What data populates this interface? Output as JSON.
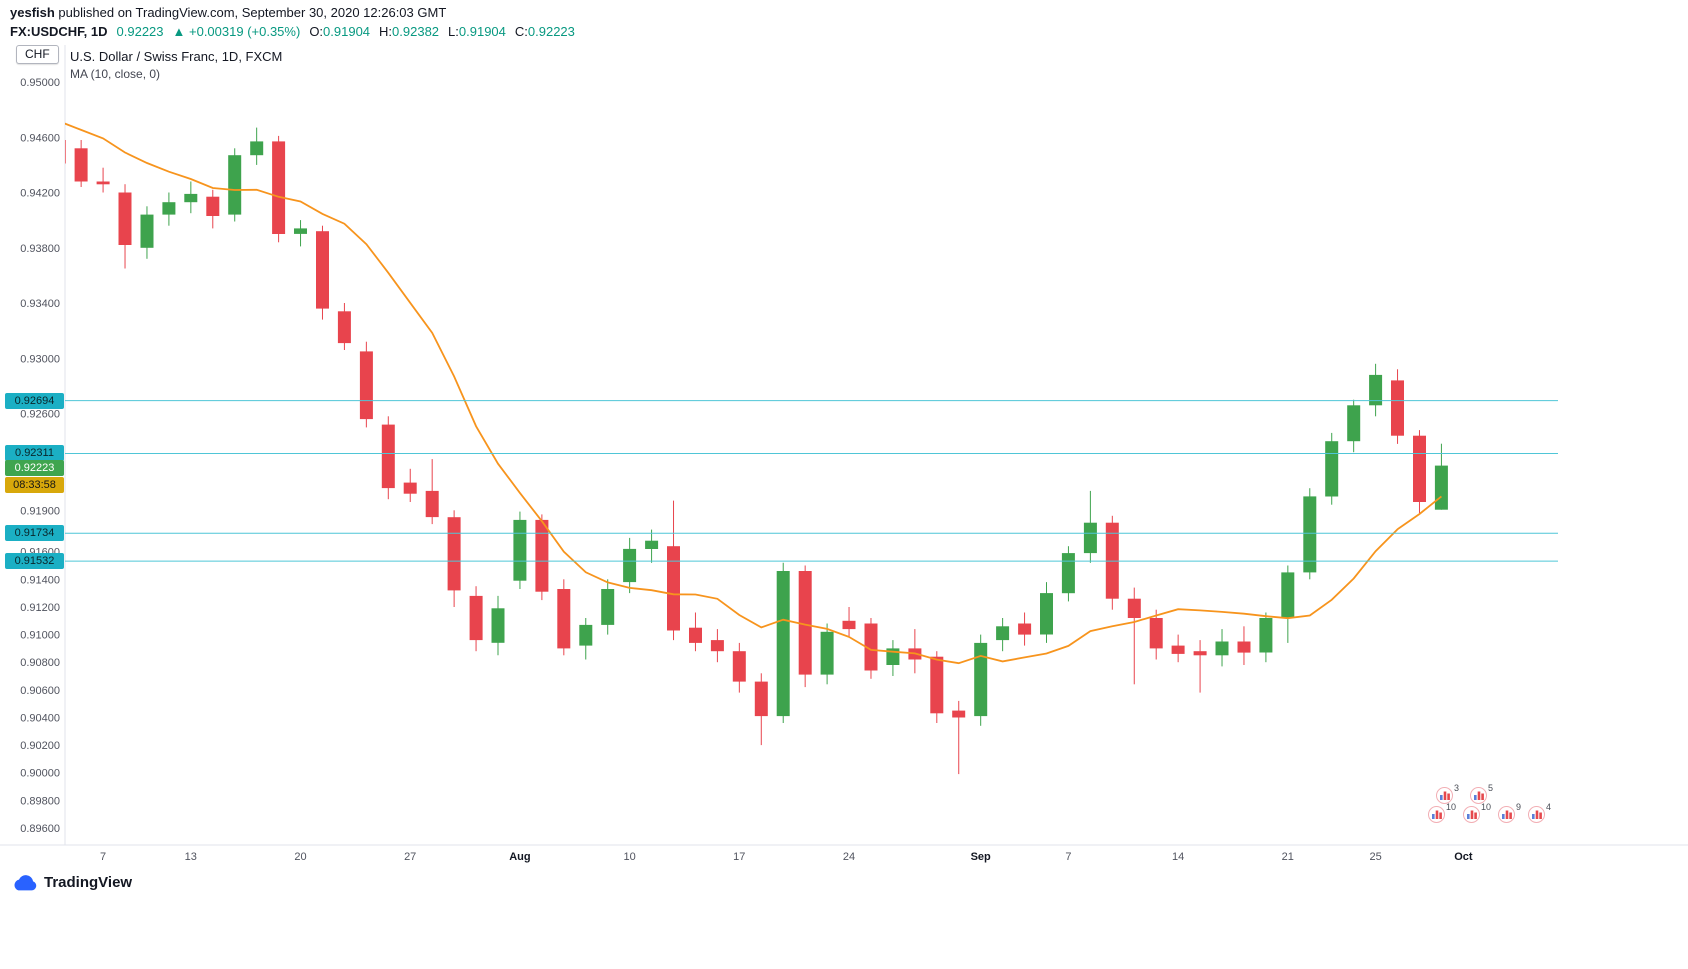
{
  "header": {
    "author": "yesfish",
    "published_suffix": " published on TradingView.com, September 30, 2020 12:26:03 GMT",
    "symbol": "FX:USDCHF, 1D",
    "last_price": "0.92223",
    "change": "▲ +0.00319 (+0.35%)",
    "ohlc": {
      "o_label": "O:",
      "o": "0.91904",
      "h_label": "H:",
      "h": "0.92382",
      "l_label": "L:",
      "l": "0.91904",
      "c_label": "C:",
      "c": "0.92223"
    }
  },
  "chart": {
    "compare_button": "CHF",
    "title": "U.S. Dollar / Swiss Franc, 1D, FXCM",
    "indicator": "MA (10, close, 0)"
  },
  "chart_data": {
    "type": "candlestick",
    "title": "U.S. Dollar / Swiss Franc, 1D, FXCM",
    "symbol": "USDCHF",
    "timeframe": "1D",
    "exchange": "FXCM",
    "indicator": "MA (10, close, 0)",
    "ylim": [
      0.8948,
      0.9527
    ],
    "y_axis_ticks": [
      "0.95000",
      "0.94600",
      "0.94200",
      "0.93800",
      "0.93400",
      "0.93000",
      "0.92600",
      "0.91900",
      "0.91600",
      "0.91400",
      "0.91200",
      "0.91000",
      "0.90800",
      "0.90600",
      "0.90400",
      "0.90200",
      "0.90000",
      "0.89800",
      "0.89600"
    ],
    "x_axis_labels": [
      {
        "label": "7",
        "ci": 2,
        "month": false
      },
      {
        "label": "13",
        "ci": 6,
        "month": false
      },
      {
        "label": "20",
        "ci": 11,
        "month": false
      },
      {
        "label": "27",
        "ci": 16,
        "month": false
      },
      {
        "label": "Aug",
        "ci": 21,
        "month": true
      },
      {
        "label": "10",
        "ci": 26,
        "month": false
      },
      {
        "label": "17",
        "ci": 31,
        "month": false
      },
      {
        "label": "24",
        "ci": 36,
        "month": false
      },
      {
        "label": "Sep",
        "ci": 42,
        "month": true
      },
      {
        "label": "7",
        "ci": 46,
        "month": false
      },
      {
        "label": "14",
        "ci": 51,
        "month": false
      },
      {
        "label": "21",
        "ci": 56,
        "month": false
      },
      {
        "label": "25",
        "ci": 60,
        "month": false
      },
      {
        "label": "Oct",
        "ci": 64,
        "month": true
      }
    ],
    "price_lines": [
      "0.92694",
      "0.92311",
      "0.91734",
      "0.91532"
    ],
    "last_price": "0.92223",
    "countdown": "08:33:58",
    "ma": {
      "period": 10,
      "source": "close",
      "offset": 0
    },
    "ma_prefix_closes": [
      0.9492,
      0.949,
      0.9487,
      0.9484,
      0.948,
      0.9476,
      0.9472,
      0.9468,
      0.9462,
      0.9455
    ],
    "candles": [
      {
        "d": "Jul 3",
        "o": 0.9458,
        "h": 0.9462,
        "l": 0.9436,
        "c": 0.9441
      },
      {
        "d": "Jul 6",
        "o": 0.9452,
        "h": 0.9458,
        "l": 0.9424,
        "c": 0.9428
      },
      {
        "d": "Jul 7",
        "o": 0.9428,
        "h": 0.9438,
        "l": 0.942,
        "c": 0.9426
      },
      {
        "d": "Jul 8",
        "o": 0.942,
        "h": 0.9426,
        "l": 0.9365,
        "c": 0.9382
      },
      {
        "d": "Jul 9",
        "o": 0.938,
        "h": 0.941,
        "l": 0.9372,
        "c": 0.9404
      },
      {
        "d": "Jul 10",
        "o": 0.9404,
        "h": 0.942,
        "l": 0.9396,
        "c": 0.9413
      },
      {
        "d": "Jul 13",
        "o": 0.9413,
        "h": 0.9428,
        "l": 0.9405,
        "c": 0.9419
      },
      {
        "d": "Jul 14",
        "o": 0.9417,
        "h": 0.9422,
        "l": 0.9394,
        "c": 0.9403
      },
      {
        "d": "Jul 15",
        "o": 0.9404,
        "h": 0.9452,
        "l": 0.9399,
        "c": 0.9447
      },
      {
        "d": "Jul 16",
        "o": 0.9447,
        "h": 0.9467,
        "l": 0.944,
        "c": 0.9457
      },
      {
        "d": "Jul 17",
        "o": 0.9457,
        "h": 0.9461,
        "l": 0.9384,
        "c": 0.939
      },
      {
        "d": "Jul 20",
        "o": 0.939,
        "h": 0.94,
        "l": 0.9381,
        "c": 0.9394
      },
      {
        "d": "Jul 21",
        "o": 0.9392,
        "h": 0.9396,
        "l": 0.9328,
        "c": 0.9336
      },
      {
        "d": "Jul 22",
        "o": 0.9334,
        "h": 0.934,
        "l": 0.9306,
        "c": 0.9311
      },
      {
        "d": "Jul 23",
        "o": 0.9305,
        "h": 0.9312,
        "l": 0.925,
        "c": 0.9256
      },
      {
        "d": "Jul 24",
        "o": 0.9252,
        "h": 0.9258,
        "l": 0.9198,
        "c": 0.9206
      },
      {
        "d": "Jul 27",
        "o": 0.921,
        "h": 0.922,
        "l": 0.9196,
        "c": 0.9202
      },
      {
        "d": "Jul 28",
        "o": 0.9204,
        "h": 0.9227,
        "l": 0.918,
        "c": 0.9185
      },
      {
        "d": "Jul 29",
        "o": 0.9185,
        "h": 0.919,
        "l": 0.912,
        "c": 0.9132
      },
      {
        "d": "Jul 30",
        "o": 0.9128,
        "h": 0.9135,
        "l": 0.9088,
        "c": 0.9096
      },
      {
        "d": "Jul 31",
        "o": 0.9094,
        "h": 0.9128,
        "l": 0.9085,
        "c": 0.9119
      },
      {
        "d": "Aug 3",
        "o": 0.9139,
        "h": 0.9189,
        "l": 0.9133,
        "c": 0.9183
      },
      {
        "d": "Aug 4",
        "o": 0.9183,
        "h": 0.9187,
        "l": 0.9125,
        "c": 0.9131
      },
      {
        "d": "Aug 5",
        "o": 0.9133,
        "h": 0.914,
        "l": 0.9085,
        "c": 0.909
      },
      {
        "d": "Aug 6",
        "o": 0.9092,
        "h": 0.9112,
        "l": 0.9082,
        "c": 0.9107
      },
      {
        "d": "Aug 7",
        "o": 0.9107,
        "h": 0.914,
        "l": 0.91,
        "c": 0.9133
      },
      {
        "d": "Aug 10",
        "o": 0.9138,
        "h": 0.917,
        "l": 0.913,
        "c": 0.9162
      },
      {
        "d": "Aug 11",
        "o": 0.9162,
        "h": 0.9176,
        "l": 0.9152,
        "c": 0.9168
      },
      {
        "d": "Aug 12",
        "o": 0.9164,
        "h": 0.9197,
        "l": 0.9096,
        "c": 0.9103
      },
      {
        "d": "Aug 13",
        "o": 0.9105,
        "h": 0.9116,
        "l": 0.9088,
        "c": 0.9094
      },
      {
        "d": "Aug 14",
        "o": 0.9096,
        "h": 0.9104,
        "l": 0.908,
        "c": 0.9088
      },
      {
        "d": "Aug 17",
        "o": 0.9088,
        "h": 0.9094,
        "l": 0.9058,
        "c": 0.9066
      },
      {
        "d": "Aug 18",
        "o": 0.9066,
        "h": 0.9072,
        "l": 0.902,
        "c": 0.9041
      },
      {
        "d": "Aug 19",
        "o": 0.9041,
        "h": 0.9152,
        "l": 0.9036,
        "c": 0.9146
      },
      {
        "d": "Aug 20",
        "o": 0.9146,
        "h": 0.915,
        "l": 0.9062,
        "c": 0.9071
      },
      {
        "d": "Aug 21",
        "o": 0.9071,
        "h": 0.9108,
        "l": 0.9064,
        "c": 0.9102
      },
      {
        "d": "Aug 24",
        "o": 0.911,
        "h": 0.912,
        "l": 0.9098,
        "c": 0.9104
      },
      {
        "d": "Aug 25",
        "o": 0.9108,
        "h": 0.9112,
        "l": 0.9068,
        "c": 0.9074
      },
      {
        "d": "Aug 26",
        "o": 0.9078,
        "h": 0.9096,
        "l": 0.907,
        "c": 0.909
      },
      {
        "d": "Aug 27",
        "o": 0.909,
        "h": 0.9104,
        "l": 0.9072,
        "c": 0.9082
      },
      {
        "d": "Aug 28",
        "o": 0.9084,
        "h": 0.9088,
        "l": 0.9036,
        "c": 0.9043
      },
      {
        "d": "Aug 31",
        "o": 0.9045,
        "h": 0.9052,
        "l": 0.8999,
        "c": 0.904
      },
      {
        "d": "Sep 1",
        "o": 0.9041,
        "h": 0.91,
        "l": 0.9034,
        "c": 0.9094
      },
      {
        "d": "Sep 2",
        "o": 0.9096,
        "h": 0.9112,
        "l": 0.9088,
        "c": 0.9106
      },
      {
        "d": "Sep 3",
        "o": 0.9108,
        "h": 0.9116,
        "l": 0.9092,
        "c": 0.91
      },
      {
        "d": "Sep 4",
        "o": 0.91,
        "h": 0.9138,
        "l": 0.9094,
        "c": 0.913
      },
      {
        "d": "Sep 7",
        "o": 0.913,
        "h": 0.9164,
        "l": 0.9124,
        "c": 0.9159
      },
      {
        "d": "Sep 8",
        "o": 0.9159,
        "h": 0.9204,
        "l": 0.9152,
        "c": 0.9181
      },
      {
        "d": "Sep 9",
        "o": 0.9181,
        "h": 0.9186,
        "l": 0.9118,
        "c": 0.9126
      },
      {
        "d": "Sep 10",
        "o": 0.9126,
        "h": 0.9134,
        "l": 0.9064,
        "c": 0.9112
      },
      {
        "d": "Sep 11",
        "o": 0.9112,
        "h": 0.9118,
        "l": 0.9082,
        "c": 0.909
      },
      {
        "d": "Sep 14",
        "o": 0.9092,
        "h": 0.91,
        "l": 0.908,
        "c": 0.9086
      },
      {
        "d": "Sep 15",
        "o": 0.9088,
        "h": 0.9096,
        "l": 0.9058,
        "c": 0.9085
      },
      {
        "d": "Sep 16",
        "o": 0.9085,
        "h": 0.9104,
        "l": 0.9077,
        "c": 0.9095
      },
      {
        "d": "Sep 17",
        "o": 0.9095,
        "h": 0.9106,
        "l": 0.9078,
        "c": 0.9087
      },
      {
        "d": "Sep 18",
        "o": 0.9087,
        "h": 0.9116,
        "l": 0.908,
        "c": 0.9112
      },
      {
        "d": "Sep 21",
        "o": 0.9112,
        "h": 0.915,
        "l": 0.9094,
        "c": 0.9145
      },
      {
        "d": "Sep 22",
        "o": 0.9145,
        "h": 0.9206,
        "l": 0.914,
        "c": 0.92
      },
      {
        "d": "Sep 23",
        "o": 0.92,
        "h": 0.9246,
        "l": 0.9194,
        "c": 0.924
      },
      {
        "d": "Sep 24",
        "o": 0.924,
        "h": 0.927,
        "l": 0.9232,
        "c": 0.9266
      },
      {
        "d": "Sep 25",
        "o": 0.9266,
        "h": 0.9296,
        "l": 0.9258,
        "c": 0.9288
      },
      {
        "d": "Sep 28",
        "o": 0.9284,
        "h": 0.9292,
        "l": 0.9238,
        "c": 0.9244
      },
      {
        "d": "Sep 29",
        "o": 0.9244,
        "h": 0.9248,
        "l": 0.9188,
        "c": 0.9196
      },
      {
        "d": "Sep 30",
        "o": 0.91904,
        "h": 0.92382,
        "l": 0.91904,
        "c": 0.92223
      }
    ],
    "colors": {
      "up": "#3EA34D",
      "down": "#E8444D",
      "ma": "#F7941D",
      "price_line": "#4FC6D7",
      "badge_cyan": "#1BAFC4",
      "badge_green": "#3FA54F",
      "badge_countdown": "#D8A80B",
      "value_text": "#089981"
    }
  },
  "reactions": {
    "top": [
      {
        "count": "3"
      },
      {
        "count": "5"
      }
    ],
    "bottom": [
      {
        "count": "10"
      },
      {
        "count": "10"
      },
      {
        "count": "9"
      },
      {
        "count": "4"
      }
    ]
  },
  "footer": {
    "brand": "TradingView"
  }
}
